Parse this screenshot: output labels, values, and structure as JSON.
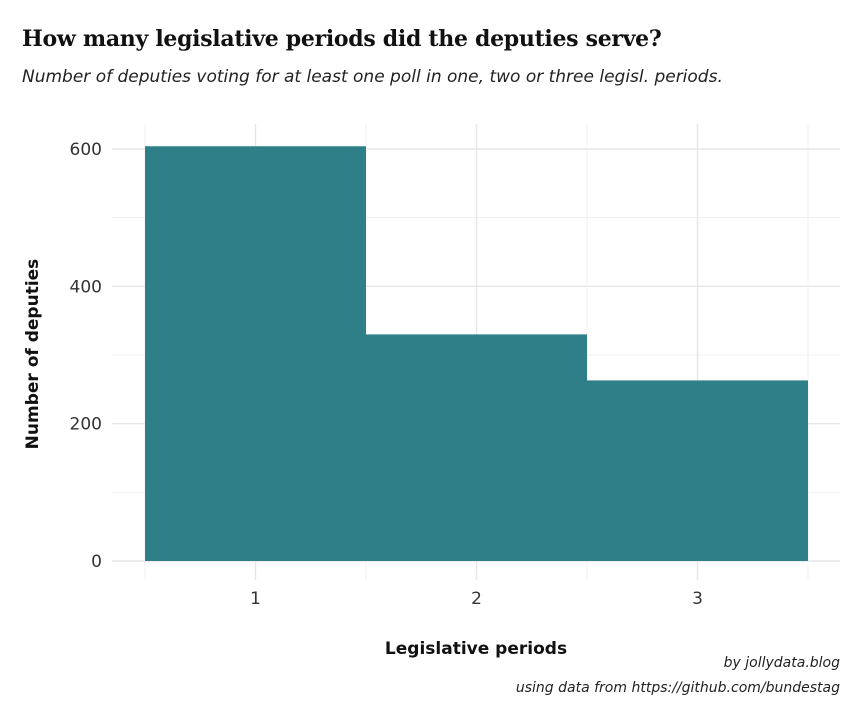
{
  "chart_data": {
    "type": "bar",
    "title": "How many legislative periods did the deputies serve?",
    "subtitle": "Number of deputies voting for at least one poll in one, two or three legisl. periods.",
    "xlabel": "Legislative periods",
    "ylabel": "Number of deputies",
    "categories": [
      "1",
      "2",
      "3"
    ],
    "values": [
      604,
      330,
      263
    ],
    "yticks": [
      "0",
      "200",
      "400",
      "600"
    ],
    "ylim": [
      0,
      635
    ],
    "grid": true,
    "bar_color": "#2e7f87",
    "caption_lines": [
      "by jollydata.blog",
      "using data from https://github.com/bundestag"
    ]
  }
}
